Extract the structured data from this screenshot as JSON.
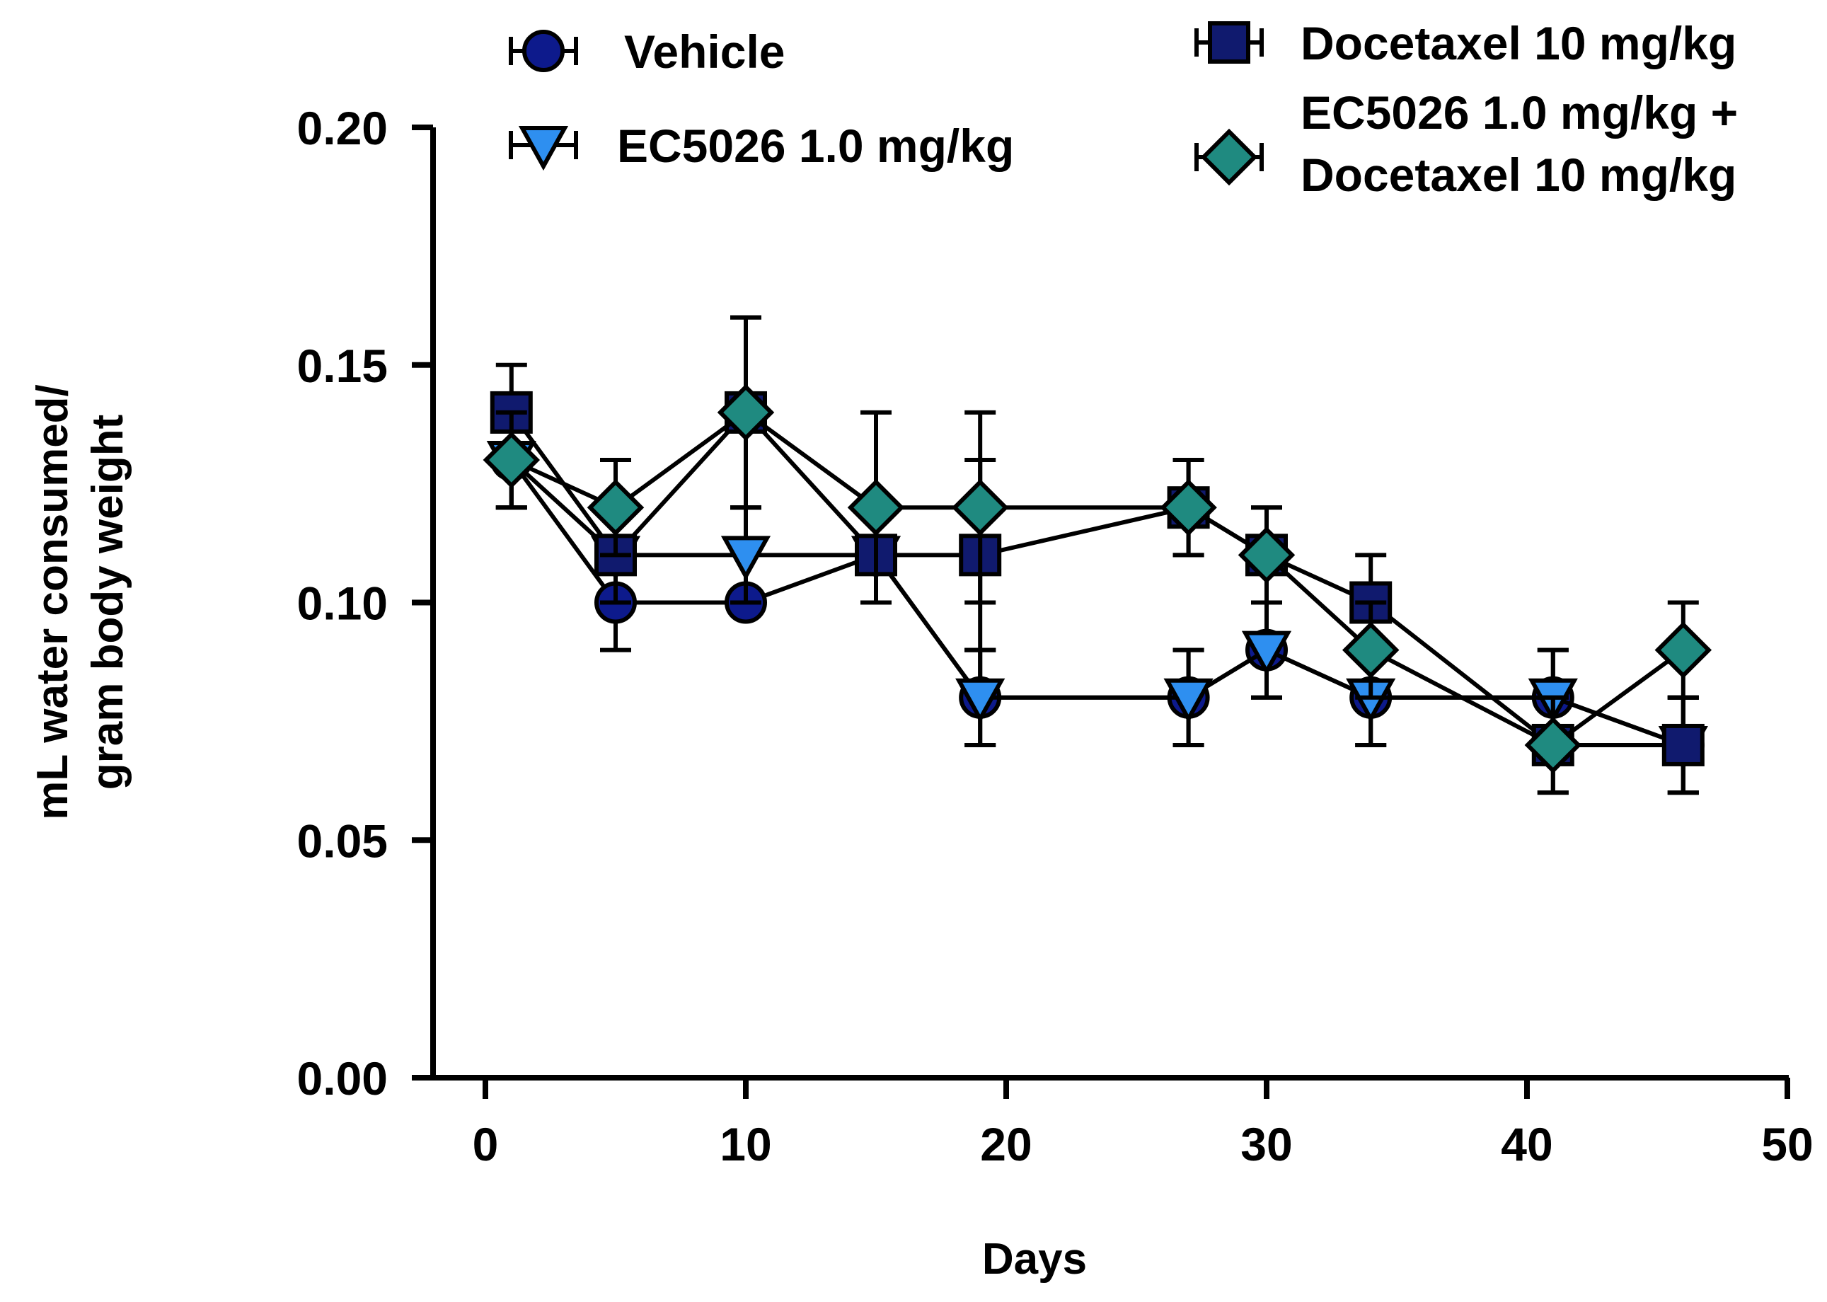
{
  "chart_data": {
    "type": "line",
    "title": "",
    "xlabel": "Days",
    "ylabel_lines": [
      "mL water consumed/",
      "gram body weight"
    ],
    "xlim": [
      0,
      50
    ],
    "ylim": [
      0.0,
      0.2
    ],
    "x_ticks": [
      0,
      10,
      20,
      30,
      40,
      50
    ],
    "x_tick_labels": [
      "0",
      "10",
      "20",
      "30",
      "40",
      "50"
    ],
    "y_ticks": [
      0.0,
      0.05,
      0.1,
      0.15,
      0.2
    ],
    "y_tick_labels": [
      "0.00",
      "0.05",
      "0.10",
      "0.15",
      "0.20"
    ],
    "grid": false,
    "legend_position": "top",
    "series": [
      {
        "name": "Vehicle",
        "legend_lines": [
          "Vehicle"
        ],
        "marker": "circle",
        "color": "#0d1a8c",
        "x": [
          1,
          5,
          10,
          15,
          19,
          27,
          30,
          34,
          41,
          46
        ],
        "values": [
          0.13,
          0.1,
          0.1,
          0.11,
          0.08,
          0.08,
          0.09,
          0.08,
          0.08,
          0.07
        ],
        "errors": [
          0.01,
          0.01,
          0.0,
          0.01,
          0.01,
          0.01,
          0.01,
          0.01,
          0.01,
          0.01
        ]
      },
      {
        "name": "EC5026 1.0 mg/kg",
        "legend_lines": [
          "EC5026 1.0 mg/kg"
        ],
        "marker": "triangle-down",
        "color": "#2e8ff0",
        "x": [
          1,
          5,
          10,
          15,
          19,
          27,
          30,
          34,
          41,
          46
        ],
        "values": [
          0.13,
          0.11,
          0.11,
          0.11,
          0.08,
          0.08,
          0.09,
          0.08,
          0.08,
          0.07
        ],
        "errors": [
          0.01,
          0.01,
          0.01,
          0.01,
          0.01,
          0.01,
          0.01,
          0.01,
          0.01,
          0.01
        ]
      },
      {
        "name": "Docetaxel 10 mg/kg",
        "legend_lines": [
          "Docetaxel 10 mg/kg"
        ],
        "marker": "square",
        "color": "#101a6e",
        "x": [
          1,
          5,
          10,
          15,
          19,
          27,
          30,
          34,
          41,
          46
        ],
        "values": [
          0.14,
          0.11,
          0.14,
          0.11,
          0.11,
          0.12,
          0.11,
          0.1,
          0.07,
          0.07
        ],
        "errors": [
          0.01,
          0.01,
          0.02,
          0.01,
          0.02,
          0.01,
          0.01,
          0.01,
          0.01,
          0.01
        ]
      },
      {
        "name": "EC5026 1.0 mg/kg + Docetaxel 10 mg/kg",
        "legend_lines": [
          "EC5026 1.0 mg/kg +",
          "Docetaxel 10 mg/kg"
        ],
        "marker": "diamond",
        "color": "#1f8a80",
        "x": [
          1,
          5,
          10,
          15,
          19,
          27,
          30,
          34,
          41,
          46
        ],
        "values": [
          0.13,
          0.12,
          0.14,
          0.12,
          0.12,
          0.12,
          0.11,
          0.09,
          0.07,
          0.09
        ],
        "errors": [
          0.01,
          0.01,
          0.02,
          0.02,
          0.02,
          0.01,
          0.01,
          0.01,
          0.01,
          0.01
        ]
      }
    ]
  }
}
